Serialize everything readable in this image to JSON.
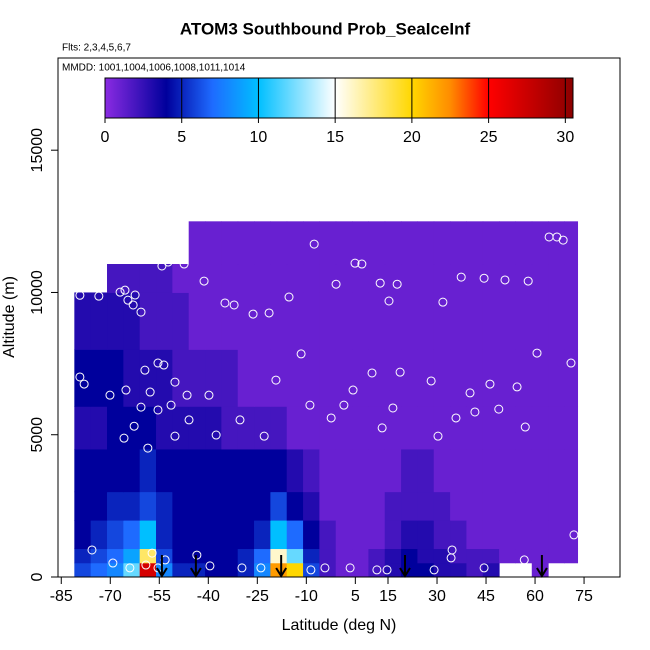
{
  "chart_data": {
    "type": "heatmap",
    "title": "ATOM3 Southbound Prob_SeaIceInf",
    "annotations": [
      "Flts: 2,3,4,5,6,7",
      "MMDD: 1001,1004,1006,1008,1011,1014"
    ],
    "x_label": "Latitude (deg N)",
    "y_label": "Altitude (m)",
    "xlim": [
      -86,
      86
    ],
    "ylim": [
      0,
      18240
    ],
    "xticks": [
      -85,
      -70,
      -55,
      -40,
      -25,
      -10,
      5,
      15,
      30,
      45,
      60,
      75
    ],
    "yticks": [
      0,
      5000,
      10000,
      15000
    ],
    "lat_edges": [
      -81,
      -76,
      -71,
      -66,
      -61,
      -56,
      -51,
      -46,
      -41,
      -36,
      -31,
      -26,
      -21,
      -16,
      -11,
      -6,
      -1,
      4,
      9,
      14,
      19,
      24,
      29,
      34,
      39,
      44,
      49,
      54,
      59,
      64,
      69,
      73
    ],
    "alt_edges": [
      0,
      500,
      1000,
      2000,
      3000,
      4500,
      6000,
      8000,
      10000,
      11000,
      12500
    ],
    "values": [
      [
        6,
        7,
        8,
        12,
        27,
        8,
        5,
        5,
        4,
        4,
        5,
        8,
        22,
        20,
        6,
        2,
        1,
        1,
        2,
        3,
        4,
        4,
        3,
        3,
        2,
        3,
        null,
        null,
        1,
        null,
        null
      ],
      [
        5,
        6,
        7,
        9,
        18,
        6,
        4,
        4,
        4,
        4,
        5,
        7,
        16,
        12,
        5,
        2,
        1,
        1,
        2,
        3,
        4,
        3,
        3,
        2,
        2,
        2,
        1,
        1,
        1,
        1,
        1
      ],
      [
        4,
        5,
        6,
        7,
        10,
        5,
        4,
        4,
        4,
        4,
        4,
        5,
        10,
        7,
        4,
        2,
        1,
        1,
        1,
        2,
        3,
        3,
        2,
        2,
        1,
        1,
        1,
        1,
        1,
        1,
        1
      ],
      [
        4,
        4,
        5,
        5,
        6,
        5,
        4,
        4,
        4,
        4,
        4,
        4,
        6,
        4,
        3,
        1,
        1,
        1,
        1,
        2,
        2,
        2,
        2,
        1,
        1,
        1,
        1,
        1,
        1,
        1,
        1
      ],
      [
        4,
        4,
        4,
        4,
        5,
        4,
        4,
        4,
        4,
        4,
        4,
        4,
        4,
        3,
        2,
        1,
        1,
        1,
        1,
        1,
        2,
        2,
        1,
        1,
        1,
        1,
        1,
        1,
        1,
        1,
        1
      ],
      [
        3,
        3,
        4,
        4,
        4,
        3,
        3,
        3,
        3,
        2,
        2,
        2,
        2,
        1,
        1,
        1,
        1,
        1,
        1,
        1,
        1,
        1,
        1,
        1,
        1,
        1,
        1,
        1,
        1,
        1,
        1
      ],
      [
        4,
        4,
        4,
        3,
        3,
        3,
        2,
        2,
        2,
        2,
        1,
        1,
        1,
        1,
        1,
        1,
        1,
        1,
        1,
        1,
        1,
        1,
        1,
        1,
        1,
        1,
        1,
        1,
        1,
        1,
        1
      ],
      [
        3,
        3,
        3,
        3,
        2,
        2,
        2,
        1,
        1,
        1,
        1,
        1,
        1,
        1,
        1,
        1,
        1,
        1,
        1,
        1,
        1,
        1,
        1,
        1,
        1,
        1,
        1,
        1,
        1,
        1,
        1
      ],
      [
        null,
        null,
        2,
        2,
        2,
        2,
        1,
        1,
        1,
        1,
        1,
        1,
        1,
        1,
        1,
        1,
        1,
        1,
        1,
        1,
        1,
        1,
        1,
        1,
        1,
        1,
        1,
        1,
        1,
        1,
        1
      ],
      [
        null,
        null,
        null,
        null,
        null,
        null,
        null,
        1,
        1,
        1,
        1,
        1,
        1,
        1,
        1,
        1,
        1,
        1,
        1,
        1,
        1,
        1,
        1,
        1,
        1,
        1,
        1,
        1,
        1,
        1,
        1
      ]
    ],
    "clim": [
      0,
      30.5
    ],
    "cticks": [
      0,
      5,
      10,
      15,
      20,
      25,
      30
    ],
    "colorscale": [
      [
        0,
        "#8a2be2"
      ],
      [
        4,
        "#00009c"
      ],
      [
        7,
        "#1e6bff"
      ],
      [
        10,
        "#00bfff"
      ],
      [
        15,
        "#ffffff"
      ],
      [
        20,
        "#ffd700"
      ],
      [
        22.5,
        "#ff8c00"
      ],
      [
        25,
        "#ff0000"
      ],
      [
        30.5,
        "#8b0000"
      ]
    ],
    "points": {
      "color": "#ffffff",
      "lat": [
        -79.3,
        -73.5,
        -67,
        -65.5,
        -64.6,
        -63,
        -60.6,
        -62.4,
        -55.7,
        -54.2,
        -52.3,
        -47.4,
        -41.3,
        -34.9,
        -32.1,
        -26.3,
        -21.4,
        -15.3,
        -7.6,
        -0.9,
        4.9,
        7,
        12.6,
        15.3,
        17.8,
        31.8,
        37.4,
        44.4,
        50.8,
        57.9,
        64.3,
        66.7,
        68.6,
        -59.4,
        -55.4,
        -53.6,
        -57.8,
        -65.2,
        -70.1,
        -60.6,
        -55.4,
        -51.4,
        -50.2,
        -46.5,
        -39.8,
        -45.9,
        -37.6,
        -50.2,
        -65.8,
        -62.7,
        -58.5,
        -30.3,
        -22.9,
        -19.3,
        -11.6,
        -8.9,
        -2.4,
        1.5,
        4.3,
        10.1,
        13.2,
        16.5,
        18.7,
        28.2,
        30.3,
        35.8,
        40.1,
        41.6,
        46.2,
        48.9,
        54.5,
        57,
        60.6,
        71,
        -79.3,
        -78,
        -75.6,
        -69.2,
        -64,
        -59.1,
        -57.2,
        -55.4,
        -53.2,
        -43.5,
        -39.5,
        -29.7,
        -23.9,
        -8.6,
        -4.3,
        3.4,
        11.6,
        14.7,
        29.1,
        34.6,
        34.3,
        44.4,
        56.7,
        71.9
      ],
      "alt": [
        9900,
        9870,
        10010,
        10080,
        9730,
        9560,
        9310,
        9910,
        11840,
        10930,
        11070,
        11000,
        10400,
        9630,
        9560,
        9240,
        9280,
        9840,
        11700,
        10290,
        11030,
        11000,
        10330,
        9700,
        10290,
        9660,
        10540,
        10500,
        10440,
        10400,
        11950,
        11950,
        11840,
        7270,
        7520,
        7450,
        6500,
        6570,
        6390,
        5970,
        5870,
        6040,
        6850,
        6390,
        6390,
        5520,
        4990,
        4950,
        4880,
        5300,
        4530,
        5520,
        4950,
        6920,
        7840,
        6040,
        5590,
        6040,
        6570,
        7170,
        5240,
        5940,
        7200,
        6890,
        4950,
        5590,
        6470,
        5800,
        6780,
        5900,
        6680,
        5270,
        7870,
        7520,
        7030,
        6780,
        950,
        490,
        320,
        420,
        840,
        320,
        600,
        770,
        390,
        320,
        320,
        250,
        320,
        320,
        250,
        250,
        250,
        950,
        670,
        320,
        600,
        1480
      ]
    },
    "arrows": [
      -54.2,
      -43.8,
      -17.7,
      20.2,
      62.1
    ]
  }
}
